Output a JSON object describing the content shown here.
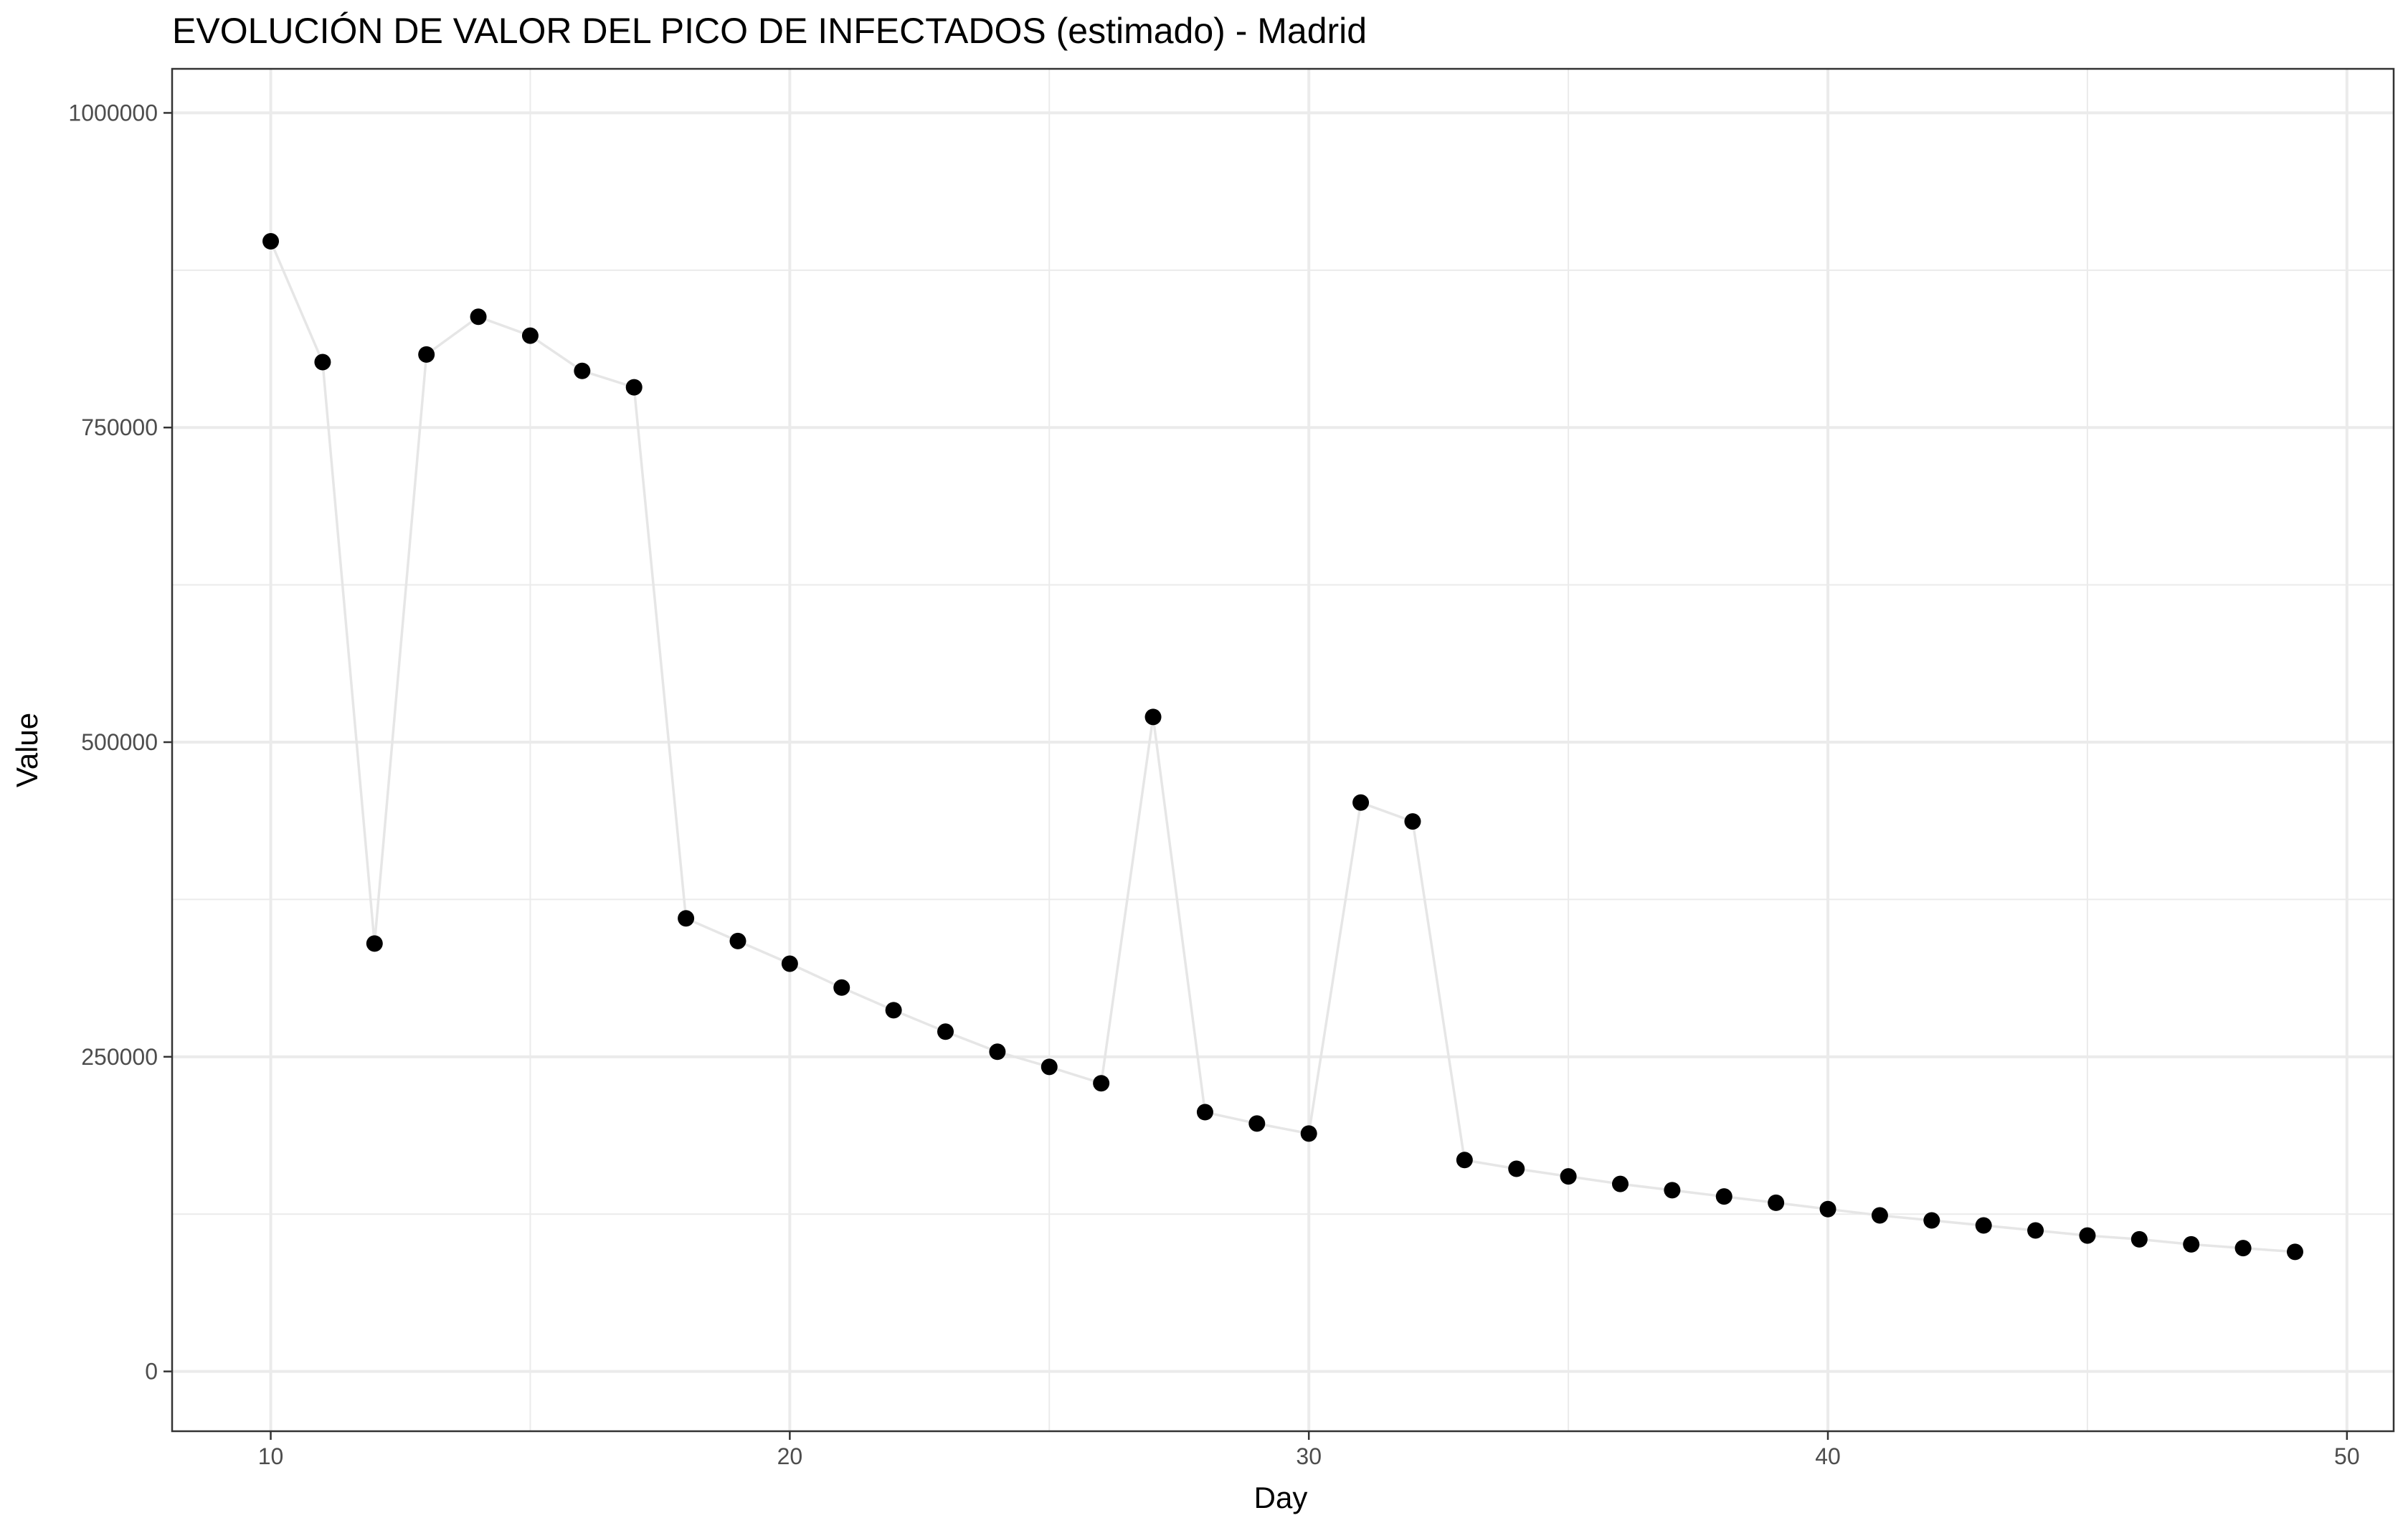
{
  "chart_data": {
    "type": "line",
    "title": "EVOLUCIÓN DE VALOR DEL PICO DE INFECTADOS (estimado) - Madrid",
    "xlabel": "Day",
    "ylabel": "Value",
    "xlim": [
      8.1,
      50.9
    ],
    "ylim": [
      -47500,
      1035000
    ],
    "xticks": [
      10,
      20,
      30,
      40,
      50
    ],
    "yticks": [
      0,
      250000,
      500000,
      750000,
      1000000
    ],
    "xtick_labels": [
      "10",
      "20",
      "30",
      "40",
      "50"
    ],
    "ytick_labels": [
      "0",
      "250000",
      "500000",
      "750000",
      "1000000"
    ],
    "x_minor": [
      15,
      25,
      35,
      45
    ],
    "y_minor": [
      125000,
      375000,
      625000,
      875000
    ],
    "grid": true,
    "line_color": "#e6e6e6",
    "point_color": "#000000",
    "x": [
      10,
      11,
      12,
      13,
      14,
      15,
      16,
      17,
      18,
      19,
      20,
      21,
      22,
      23,
      24,
      25,
      26,
      27,
      28,
      29,
      30,
      31,
      32,
      33,
      34,
      35,
      36,
      37,
      38,
      39,
      40,
      41,
      42,
      43,
      44,
      45,
      46,
      47,
      48,
      49
    ],
    "values": [
      898000,
      802000,
      340000,
      808000,
      838000,
      823000,
      795000,
      782000,
      360000,
      342000,
      324000,
      305000,
      287000,
      270000,
      254000,
      242000,
      229000,
      520000,
      206000,
      197000,
      189000,
      452000,
      437000,
      168000,
      161000,
      155000,
      149000,
      144000,
      139000,
      134000,
      129000,
      124000,
      120000,
      116000,
      112000,
      108000,
      105000,
      101000,
      98000,
      95000
    ]
  }
}
